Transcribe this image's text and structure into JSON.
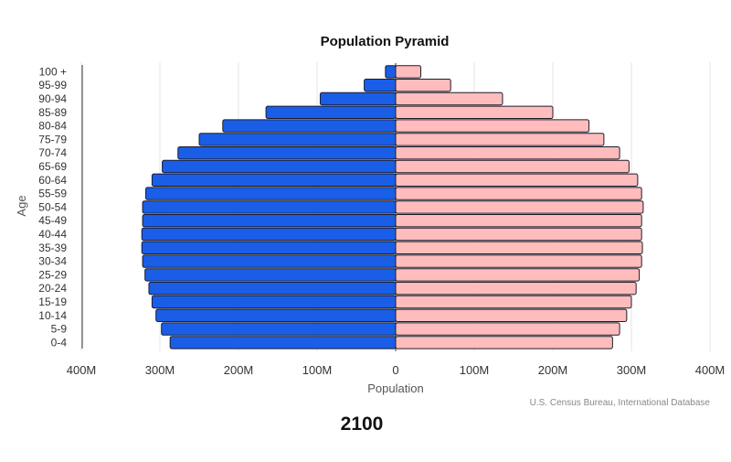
{
  "chart_data": {
    "type": "bar",
    "orientation": "horizontal-diverging",
    "title": "Population Pyramid",
    "xlabel": "Population",
    "ylabel": "Age",
    "year_label": "2100",
    "source": "U.S. Census Bureau, International Database",
    "xlim": [
      -400,
      400
    ],
    "x_ticks": [
      {
        "value": -400,
        "label": "400M"
      },
      {
        "value": -300,
        "label": "300M"
      },
      {
        "value": -200,
        "label": "200M"
      },
      {
        "value": -100,
        "label": "100M"
      },
      {
        "value": 0,
        "label": "0"
      },
      {
        "value": 100,
        "label": "100M"
      },
      {
        "value": 200,
        "label": "200M"
      },
      {
        "value": 300,
        "label": "300M"
      },
      {
        "value": 400,
        "label": "400M"
      }
    ],
    "grid": true,
    "categories": [
      "100 +",
      "95-99",
      "90-94",
      "85-89",
      "80-84",
      "75-79",
      "70-74",
      "65-69",
      "60-64",
      "55-59",
      "50-54",
      "45-49",
      "40-44",
      "35-39",
      "30-34",
      "25-29",
      "20-24",
      "15-19",
      "10-14",
      "5-9",
      "0-4"
    ],
    "series": [
      {
        "color": "#1a5ee8",
        "side": "left",
        "values": [
          13,
          40,
          96,
          165,
          220,
          250,
          277,
          297,
          310,
          318,
          322,
          322,
          323,
          323,
          322,
          319,
          314,
          310,
          305,
          298,
          287
        ]
      },
      {
        "color": "#ffbcbc",
        "side": "right",
        "values": [
          32,
          70,
          136,
          200,
          246,
          265,
          285,
          297,
          308,
          313,
          315,
          313,
          313,
          314,
          313,
          310,
          306,
          300,
          294,
          285,
          276
        ]
      }
    ]
  }
}
